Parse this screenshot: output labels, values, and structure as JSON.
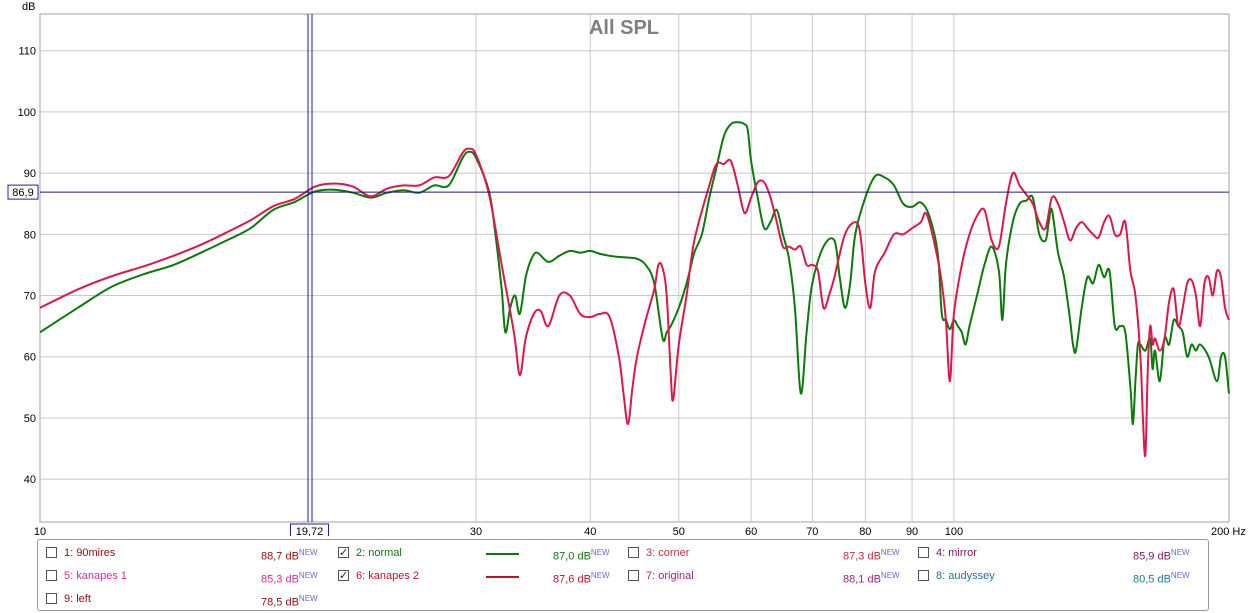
{
  "chart_data": {
    "type": "line",
    "title": "All SPL",
    "ylabel": "dB",
    "xunit": "Hz",
    "xscale": "log",
    "xlim": [
      10,
      200
    ],
    "ylim": [
      33,
      116
    ],
    "x_ticks": [
      10,
      30,
      40,
      50,
      60,
      70,
      80,
      90,
      100,
      200
    ],
    "x_tick_labels": [
      "10",
      "30",
      "40",
      "50",
      "60",
      "70",
      "80",
      "90",
      "100",
      "200 Hz"
    ],
    "y_ticks": [
      40,
      50,
      60,
      70,
      80,
      90,
      100,
      110
    ],
    "grid": true,
    "cursor": {
      "x": 19.72,
      "y": 86.9,
      "x_label": "19,72",
      "y_label": "86,9"
    },
    "series": [
      {
        "name": "2: normal",
        "color": "#0a7a0a",
        "points": [
          [
            10,
            64
          ],
          [
            11,
            68
          ],
          [
            12,
            71.5
          ],
          [
            13,
            73.5
          ],
          [
            14,
            75
          ],
          [
            15,
            77
          ],
          [
            16,
            79
          ],
          [
            17,
            81
          ],
          [
            18,
            84
          ],
          [
            19,
            85.3
          ],
          [
            20,
            87
          ],
          [
            21,
            87.3
          ],
          [
            22,
            86.8
          ],
          [
            23,
            86
          ],
          [
            24,
            86.8
          ],
          [
            25,
            87.2
          ],
          [
            26,
            86.8
          ],
          [
            27,
            88
          ],
          [
            28,
            88
          ],
          [
            29,
            92.5
          ],
          [
            29.5,
            93.5
          ],
          [
            30,
            92.5
          ],
          [
            31,
            87
          ],
          [
            31.5,
            80
          ],
          [
            32,
            71
          ],
          [
            32.3,
            64
          ],
          [
            32.7,
            68
          ],
          [
            33.1,
            70
          ],
          [
            33.5,
            67
          ],
          [
            34,
            73
          ],
          [
            34.5,
            76
          ],
          [
            35,
            77
          ],
          [
            36,
            75.5
          ],
          [
            37,
            76.5
          ],
          [
            38,
            77.3
          ],
          [
            39,
            77
          ],
          [
            40,
            77.3
          ],
          [
            41,
            76.8
          ],
          [
            42,
            76.5
          ],
          [
            43,
            76.3
          ],
          [
            44,
            76.2
          ],
          [
            45,
            76
          ],
          [
            46,
            75
          ],
          [
            47,
            72
          ],
          [
            48,
            63
          ],
          [
            48.5,
            64
          ],
          [
            49,
            65
          ],
          [
            50,
            68
          ],
          [
            51,
            72
          ],
          [
            52,
            77
          ],
          [
            53,
            80
          ],
          [
            54,
            86
          ],
          [
            55,
            91
          ],
          [
            56,
            96
          ],
          [
            57,
            98
          ],
          [
            58,
            98.3
          ],
          [
            59,
            98
          ],
          [
            59.5,
            97
          ],
          [
            60,
            92
          ],
          [
            61,
            86
          ],
          [
            62,
            81
          ],
          [
            63,
            82
          ],
          [
            64,
            84
          ],
          [
            65,
            80
          ],
          [
            66,
            76
          ],
          [
            67,
            68
          ],
          [
            68,
            54
          ],
          [
            69,
            64
          ],
          [
            70,
            72
          ],
          [
            72,
            78
          ],
          [
            74,
            79
          ],
          [
            75,
            73
          ],
          [
            76,
            68
          ],
          [
            77,
            72
          ],
          [
            78,
            80
          ],
          [
            80,
            86
          ],
          [
            82,
            89.5
          ],
          [
            84,
            89.3
          ],
          [
            86,
            88
          ],
          [
            88,
            85
          ],
          [
            90,
            84.5
          ],
          [
            92,
            85.2
          ],
          [
            94,
            83
          ],
          [
            96,
            77
          ],
          [
            97,
            67
          ],
          [
            98,
            66
          ],
          [
            99,
            64.5
          ],
          [
            100,
            66
          ],
          [
            101,
            65
          ],
          [
            102,
            64
          ],
          [
            103,
            62
          ],
          [
            104,
            65
          ],
          [
            106,
            70
          ],
          [
            108,
            75
          ],
          [
            110,
            78
          ],
          [
            112,
            74
          ],
          [
            113,
            66
          ],
          [
            114,
            75
          ],
          [
            116,
            82
          ],
          [
            118,
            85
          ],
          [
            120,
            85.5
          ],
          [
            122,
            86
          ],
          [
            124,
            80
          ],
          [
            126,
            79
          ],
          [
            127,
            82
          ],
          [
            128,
            84
          ],
          [
            130,
            77
          ],
          [
            132,
            73
          ],
          [
            134,
            66
          ],
          [
            135,
            62
          ],
          [
            136,
            61
          ],
          [
            138,
            68
          ],
          [
            140,
            73
          ],
          [
            142,
            72
          ],
          [
            144,
            75
          ],
          [
            146,
            73
          ],
          [
            148,
            74
          ],
          [
            150,
            65
          ],
          [
            152,
            65
          ],
          [
            154,
            64
          ],
          [
            156,
            55
          ],
          [
            157,
            49
          ],
          [
            158,
            56
          ],
          [
            159,
            62
          ],
          [
            160,
            62
          ],
          [
            162,
            61
          ],
          [
            164,
            63
          ],
          [
            165,
            58
          ],
          [
            166,
            61
          ],
          [
            168,
            56
          ],
          [
            170,
            63
          ],
          [
            172,
            62
          ],
          [
            174,
            66
          ],
          [
            176,
            65
          ],
          [
            178,
            64
          ],
          [
            180,
            60
          ],
          [
            182,
            62
          ],
          [
            184,
            61
          ],
          [
            186,
            62
          ],
          [
            190,
            60
          ],
          [
            194,
            56
          ],
          [
            196,
            60
          ],
          [
            198,
            60
          ],
          [
            200,
            54
          ]
        ]
      },
      {
        "name": "6: kanapes 2",
        "color": "#dc1848",
        "points": [
          [
            10,
            68
          ],
          [
            11,
            71
          ],
          [
            12,
            73.2
          ],
          [
            13,
            74.8
          ],
          [
            14,
            76.5
          ],
          [
            15,
            78.3
          ],
          [
            16,
            80.3
          ],
          [
            17,
            82.3
          ],
          [
            18,
            84.6
          ],
          [
            19,
            85.8
          ],
          [
            20,
            87.8
          ],
          [
            21,
            88.3
          ],
          [
            22,
            87.8
          ],
          [
            23,
            86.2
          ],
          [
            24,
            87.5
          ],
          [
            25,
            88
          ],
          [
            26,
            88
          ],
          [
            27,
            89.3
          ],
          [
            28,
            89.5
          ],
          [
            29,
            93.3
          ],
          [
            29.5,
            94
          ],
          [
            30,
            93
          ],
          [
            31,
            86.5
          ],
          [
            32,
            75
          ],
          [
            33,
            64
          ],
          [
            33.5,
            57
          ],
          [
            34,
            63
          ],
          [
            34.7,
            67
          ],
          [
            35.3,
            67.5
          ],
          [
            36,
            65
          ],
          [
            37,
            70
          ],
          [
            38,
            70
          ],
          [
            39,
            67
          ],
          [
            40,
            66.5
          ],
          [
            41,
            67
          ],
          [
            42,
            66.5
          ],
          [
            43,
            60
          ],
          [
            43.5,
            54
          ],
          [
            44,
            49
          ],
          [
            44.5,
            55
          ],
          [
            45,
            60
          ],
          [
            46,
            66
          ],
          [
            47,
            71
          ],
          [
            47.5,
            75
          ],
          [
            48,
            74.5
          ],
          [
            48.5,
            70
          ],
          [
            49,
            57
          ],
          [
            49.3,
            53
          ],
          [
            50,
            62
          ],
          [
            51,
            70
          ],
          [
            52,
            79
          ],
          [
            54,
            88
          ],
          [
            55,
            91.5
          ],
          [
            56,
            91.5
          ],
          [
            57,
            92
          ],
          [
            58,
            88
          ],
          [
            59,
            83.5
          ],
          [
            60,
            86
          ],
          [
            61,
            88.5
          ],
          [
            62,
            88.5
          ],
          [
            63,
            86
          ],
          [
            64,
            82
          ],
          [
            65,
            78
          ],
          [
            66,
            78
          ],
          [
            67,
            77.5
          ],
          [
            68,
            78
          ],
          [
            69,
            75
          ],
          [
            70,
            75
          ],
          [
            71,
            74
          ],
          [
            72,
            68
          ],
          [
            73,
            70
          ],
          [
            74,
            73
          ],
          [
            76,
            80
          ],
          [
            78,
            82
          ],
          [
            79,
            80
          ],
          [
            80,
            72
          ],
          [
            81,
            68
          ],
          [
            82,
            74
          ],
          [
            84,
            77
          ],
          [
            86,
            80
          ],
          [
            88,
            80
          ],
          [
            90,
            81
          ],
          [
            92,
            82
          ],
          [
            93,
            83.5
          ],
          [
            94,
            82
          ],
          [
            96,
            76
          ],
          [
            97,
            72
          ],
          [
            98,
            66
          ],
          [
            99,
            56
          ],
          [
            100,
            67
          ],
          [
            102,
            75
          ],
          [
            104,
            80
          ],
          [
            106,
            83
          ],
          [
            108,
            84
          ],
          [
            110,
            79
          ],
          [
            112,
            78
          ],
          [
            114,
            85
          ],
          [
            116,
            90
          ],
          [
            118,
            88
          ],
          [
            120,
            86.5
          ],
          [
            122,
            85
          ],
          [
            124,
            82
          ],
          [
            126,
            81
          ],
          [
            128,
            86
          ],
          [
            130,
            85
          ],
          [
            132,
            82
          ],
          [
            134,
            79
          ],
          [
            136,
            81
          ],
          [
            138,
            82
          ],
          [
            140,
            81
          ],
          [
            142,
            80
          ],
          [
            144,
            79.5
          ],
          [
            146,
            82
          ],
          [
            148,
            83
          ],
          [
            150,
            80
          ],
          [
            152,
            80
          ],
          [
            154,
            82
          ],
          [
            156,
            74
          ],
          [
            158,
            70
          ],
          [
            160,
            60
          ],
          [
            161,
            50
          ],
          [
            162,
            44
          ],
          [
            163,
            58
          ],
          [
            164,
            65
          ],
          [
            165,
            62
          ],
          [
            166,
            63
          ],
          [
            168,
            61
          ],
          [
            170,
            63
          ],
          [
            172,
            69
          ],
          [
            174,
            71
          ],
          [
            176,
            65
          ],
          [
            178,
            68
          ],
          [
            180,
            72
          ],
          [
            182,
            72.5
          ],
          [
            184,
            70
          ],
          [
            186,
            65
          ],
          [
            188,
            72
          ],
          [
            190,
            73
          ],
          [
            192,
            70
          ],
          [
            194,
            74
          ],
          [
            196,
            73
          ],
          [
            198,
            68
          ],
          [
            200,
            66
          ]
        ]
      }
    ]
  },
  "legend": {
    "items": [
      {
        "label": "1: 90mires",
        "value": "88,7 dB",
        "badge": "NEW",
        "checked": false,
        "color": "#8b1010"
      },
      {
        "label": "2: normal",
        "value": "87,0 dB",
        "badge": "NEW",
        "checked": true,
        "color": "#0a7a0a"
      },
      {
        "label": "3: corner",
        "value": "87,3 dB",
        "badge": "NEW",
        "checked": false,
        "color": "#c0303c"
      },
      {
        "label": "4: mirror",
        "value": "85,9 dB",
        "badge": "NEW",
        "checked": false,
        "color": "#7a1a6a"
      },
      {
        "label": "5: kanapes 1",
        "value": "85,3 dB",
        "badge": "NEW",
        "checked": false,
        "color": "#d0309a"
      },
      {
        "label": "6: kanapes 2",
        "value": "87,6 dB",
        "badge": "NEW",
        "checked": true,
        "color": "#c0102a"
      },
      {
        "label": "7: original",
        "value": "88,1 dB",
        "badge": "NEW",
        "checked": false,
        "color": "#a82080"
      },
      {
        "label": "8: audyssey",
        "value": "80,5 dB",
        "badge": "NEW",
        "checked": false,
        "color": "#1a7a9a"
      },
      {
        "label": "9: left",
        "value": "78,5 dB",
        "badge": "NEW",
        "checked": false,
        "color": "#8b1010"
      }
    ]
  }
}
